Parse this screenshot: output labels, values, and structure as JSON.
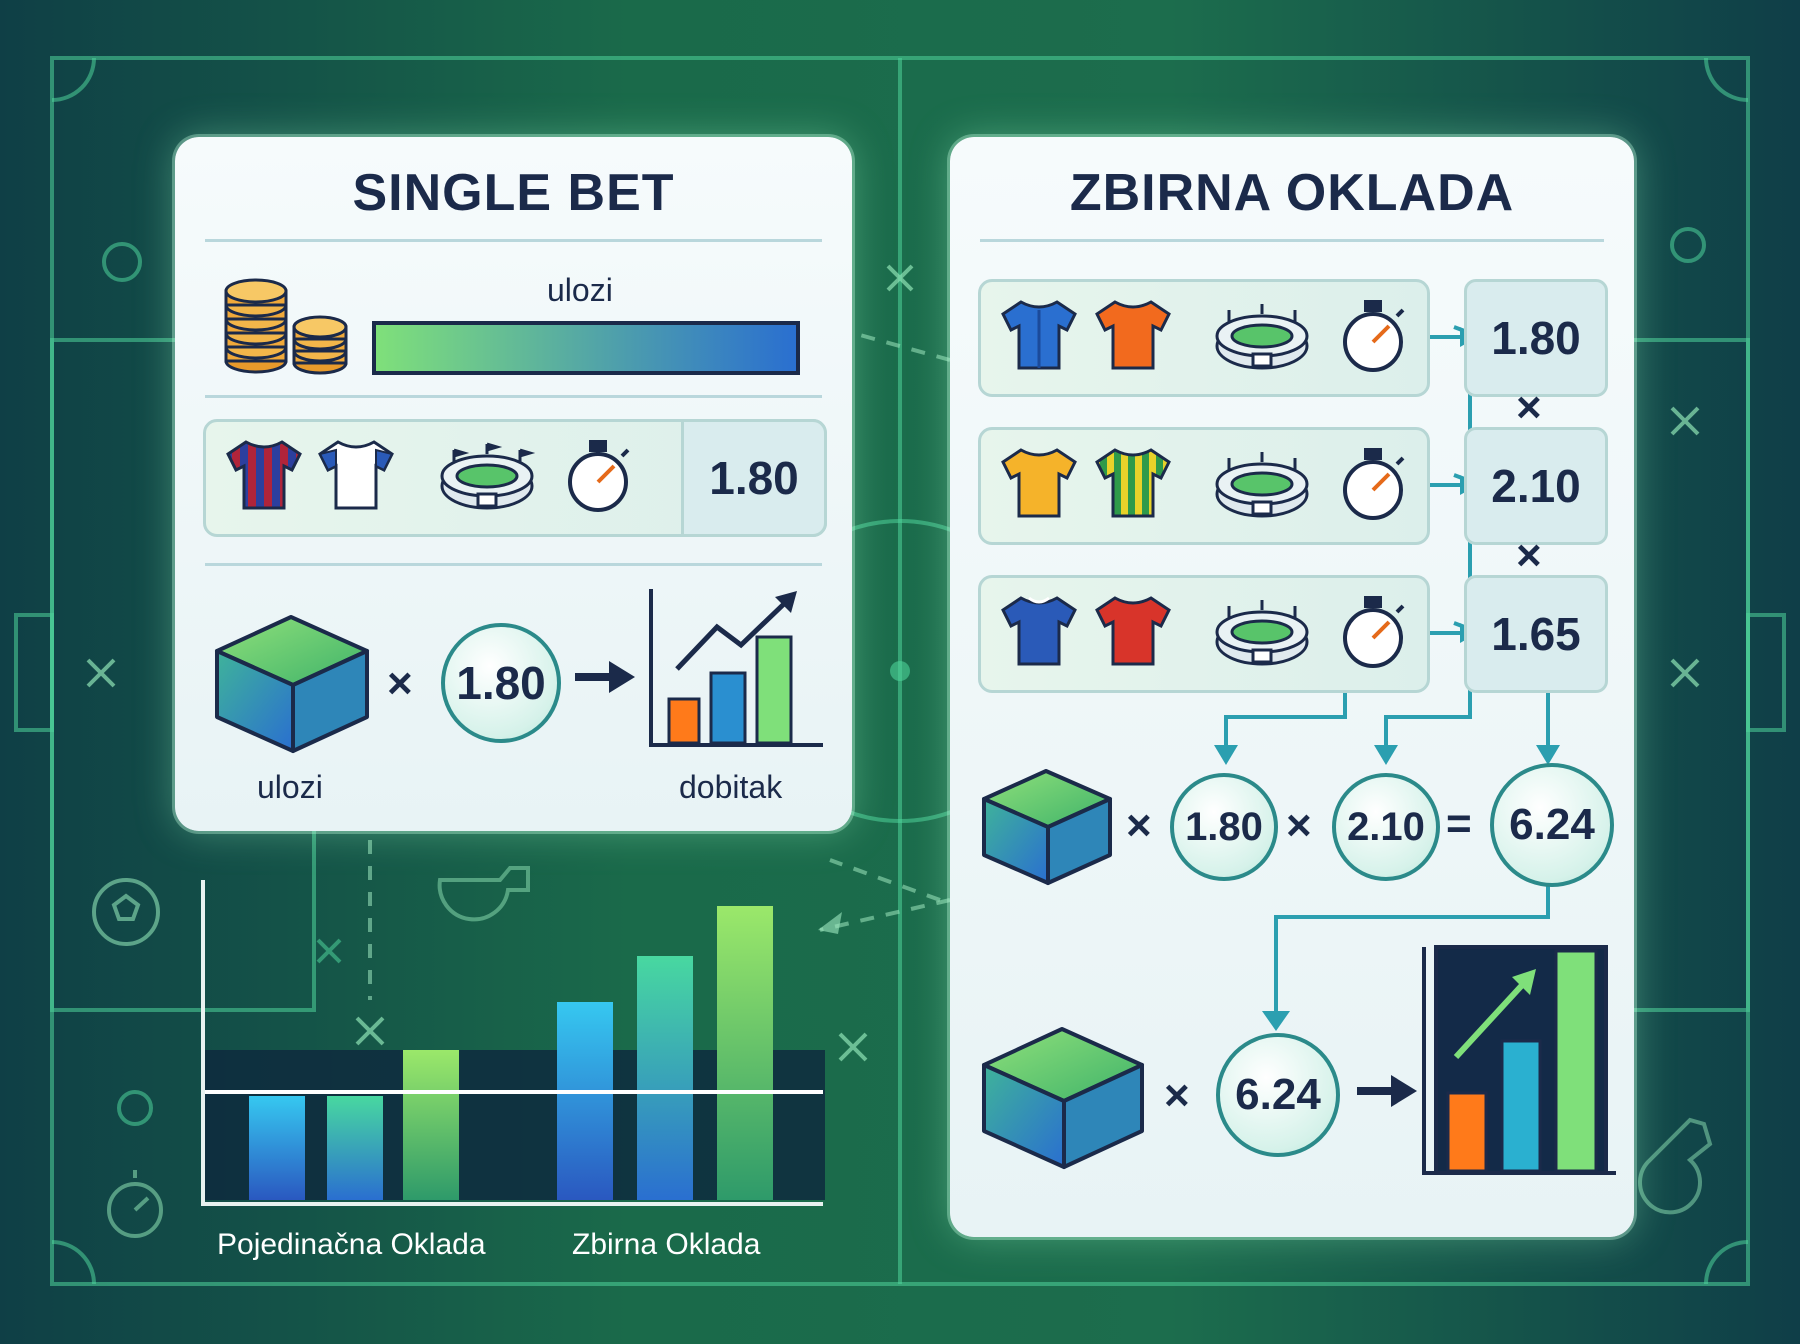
{
  "single": {
    "title": "SINGLE BET",
    "stake_bar_label": "ulozi",
    "odd": "1.80",
    "calc_odd": "1.80",
    "calc_times": "×",
    "stake_label": "ulozi",
    "win_label": "dobitak"
  },
  "multi": {
    "title": "ZBIRNA OKLADA",
    "odds": [
      "1.80",
      "2.10",
      "1.65"
    ],
    "times": "×",
    "equals": "=",
    "calc": [
      "1.80",
      "2.10"
    ],
    "total": "6.24",
    "final_odd": "6.24"
  },
  "comparison": {
    "labels": [
      "Pojedinačna Oklada",
      "Zbirna Oklada"
    ]
  },
  "colors": {
    "panel_bg": "#f3f9fa",
    "title": "#1b2a4a",
    "accent_teal": "#2b8a8a",
    "bar_green": "#7fe07a",
    "bar_blue": "#2a6fd0",
    "bar_orange": "#ff7a1a"
  },
  "icons": [
    "coins-icon",
    "jersey-icon",
    "stadium-icon",
    "stopwatch-icon",
    "stake-box-icon",
    "growth-chart-icon",
    "arrow-icon"
  ]
}
